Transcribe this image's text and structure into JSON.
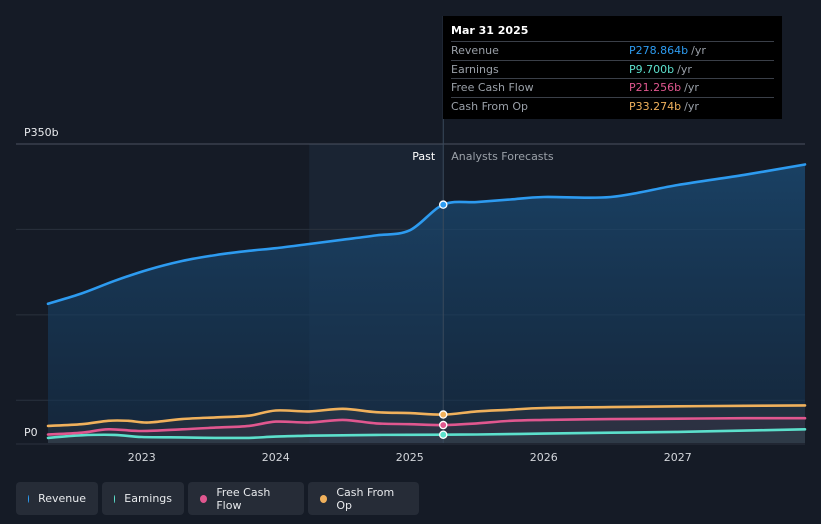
{
  "tooltip": {
    "date": "Mar 31 2025",
    "rows": [
      {
        "label": "Revenue",
        "value": "P278.864b",
        "unit": "/yr",
        "color": "#2d9bf0"
      },
      {
        "label": "Earnings",
        "value": "P9.700b",
        "unit": "/yr",
        "color": "#5ce0cc"
      },
      {
        "label": "Free Cash Flow",
        "value": "P21.256b",
        "unit": "/yr",
        "color": "#e0578f"
      },
      {
        "label": "Cash From Op",
        "value": "P33.274b",
        "unit": "/yr",
        "color": "#f0b15c"
      }
    ]
  },
  "legend": [
    {
      "label": "Revenue",
      "color": "#2d9bf0"
    },
    {
      "label": "Earnings",
      "color": "#5ce0cc"
    },
    {
      "label": "Free Cash Flow",
      "color": "#e0578f"
    },
    {
      "label": "Cash From Op",
      "color": "#f0b15c"
    }
  ],
  "chart_data": {
    "type": "line",
    "y_max_label": "P350b",
    "y_min_label": "P0",
    "ylim": [
      0,
      350
    ],
    "xlim": [
      2022.3,
      2027.95
    ],
    "x_ticks": [
      2023,
      2024,
      2025,
      2026,
      2027
    ],
    "x_tick_labels": [
      "2023",
      "2024",
      "2025",
      "2026",
      "2027"
    ],
    "divider_x": 2025.25,
    "past_label": "Past",
    "forecast_label": "Analysts Forecasts",
    "grid": true,
    "series": [
      {
        "name": "Revenue",
        "color": "#2d9bf0",
        "fill": true,
        "points": [
          [
            2022.3,
            163
          ],
          [
            2022.55,
            175
          ],
          [
            2022.8,
            190
          ],
          [
            2023.05,
            203
          ],
          [
            2023.3,
            213
          ],
          [
            2023.55,
            220
          ],
          [
            2023.8,
            225
          ],
          [
            2024.0,
            228
          ],
          [
            2024.25,
            233
          ],
          [
            2024.5,
            238
          ],
          [
            2024.75,
            243
          ],
          [
            2025.0,
            249
          ],
          [
            2025.25,
            279
          ],
          [
            2025.5,
            264
          ],
          [
            2025.75,
            269
          ],
          [
            2026.0,
            275
          ],
          [
            2026.5,
            288
          ],
          [
            2027.0,
            302
          ],
          [
            2027.5,
            314
          ],
          [
            2027.95,
            326
          ]
        ]
      },
      {
        "name": "Earnings",
        "color": "#5ce0cc",
        "fill": false,
        "points": [
          [
            2022.3,
            6
          ],
          [
            2022.55,
            9
          ],
          [
            2022.8,
            9.5
          ],
          [
            2023.0,
            7
          ],
          [
            2023.3,
            6.5
          ],
          [
            2023.55,
            6
          ],
          [
            2023.8,
            6
          ],
          [
            2024.0,
            7.5
          ],
          [
            2024.25,
            8.5
          ],
          [
            2024.5,
            9
          ],
          [
            2024.75,
            9.5
          ],
          [
            2025.25,
            9.7
          ],
          [
            2025.5,
            10
          ],
          [
            2026.0,
            11
          ],
          [
            2026.5,
            12
          ],
          [
            2027.0,
            13
          ],
          [
            2027.5,
            14.5
          ],
          [
            2027.95,
            16
          ]
        ]
      },
      {
        "name": "Free Cash Flow",
        "color": "#e0578f",
        "fill": false,
        "points": [
          [
            2022.3,
            10
          ],
          [
            2022.55,
            12
          ],
          [
            2022.75,
            16
          ],
          [
            2023.0,
            14
          ],
          [
            2023.3,
            16
          ],
          [
            2023.55,
            18
          ],
          [
            2023.8,
            20
          ],
          [
            2024.0,
            25
          ],
          [
            2024.25,
            24
          ],
          [
            2024.5,
            27
          ],
          [
            2024.75,
            23
          ],
          [
            2025.0,
            22
          ],
          [
            2025.25,
            21
          ],
          [
            2025.5,
            23
          ],
          [
            2025.75,
            26
          ],
          [
            2026.0,
            27
          ],
          [
            2026.5,
            28
          ],
          [
            2027.0,
            28.5
          ],
          [
            2027.5,
            29
          ],
          [
            2027.95,
            29
          ]
        ]
      },
      {
        "name": "Cash From Op",
        "color": "#f0b15c",
        "fill": false,
        "points": [
          [
            2022.3,
            20
          ],
          [
            2022.55,
            22
          ],
          [
            2022.75,
            26
          ],
          [
            2022.9,
            26
          ],
          [
            2023.05,
            24
          ],
          [
            2023.3,
            28
          ],
          [
            2023.55,
            30
          ],
          [
            2023.8,
            32
          ],
          [
            2024.0,
            38
          ],
          [
            2024.25,
            37
          ],
          [
            2024.5,
            40
          ],
          [
            2024.75,
            36
          ],
          [
            2025.0,
            35
          ],
          [
            2025.25,
            33.3
          ],
          [
            2025.5,
            37
          ],
          [
            2025.75,
            39
          ],
          [
            2026.0,
            41
          ],
          [
            2026.5,
            42
          ],
          [
            2027.0,
            43
          ],
          [
            2027.5,
            43.5
          ],
          [
            2027.95,
            44
          ]
        ]
      }
    ]
  }
}
